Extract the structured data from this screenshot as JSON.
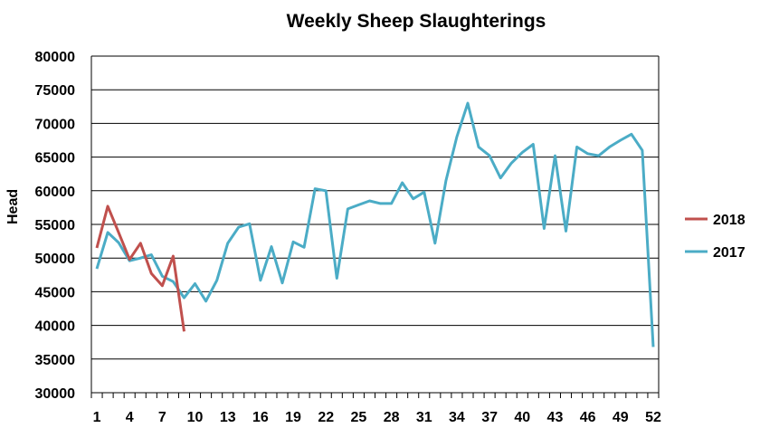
{
  "chart_data": {
    "type": "line",
    "title": "Weekly Sheep Slaughterings",
    "xlabel": "",
    "ylabel": "Head",
    "ylim": [
      30000,
      80000
    ],
    "ystep": 5000,
    "xlim": [
      1,
      52
    ],
    "xticks": [
      1,
      4,
      7,
      10,
      13,
      16,
      19,
      22,
      25,
      28,
      31,
      34,
      37,
      40,
      43,
      46,
      49,
      52
    ],
    "grid": "horizontal",
    "legend_position": "right",
    "series": [
      {
        "name": "2018",
        "color": "#C0504D",
        "x": [
          1,
          2,
          3,
          4,
          5,
          6,
          7,
          8,
          9
        ],
        "values": [
          51500,
          57700,
          53800,
          49800,
          52200,
          47700,
          45900,
          50300,
          39100
        ]
      },
      {
        "name": "2017",
        "color": "#4BACC6",
        "x": [
          1,
          2,
          3,
          4,
          5,
          6,
          7,
          8,
          9,
          10,
          11,
          12,
          13,
          14,
          15,
          16,
          17,
          18,
          19,
          20,
          21,
          22,
          23,
          24,
          25,
          26,
          27,
          28,
          29,
          30,
          31,
          32,
          33,
          34,
          35,
          36,
          37,
          38,
          39,
          40,
          41,
          42,
          43,
          44,
          45,
          46,
          47,
          48,
          49,
          50,
          51,
          52
        ],
        "values": [
          48400,
          53800,
          52300,
          49600,
          50000,
          50500,
          47300,
          46500,
          44100,
          46200,
          43600,
          46700,
          52200,
          54600,
          55100,
          46700,
          51700,
          46300,
          52400,
          51600,
          60300,
          60000,
          47000,
          57300,
          57900,
          58500,
          58100,
          58100,
          61200,
          58800,
          59800,
          52200,
          61500,
          68000,
          73000,
          66500,
          65200,
          61900,
          64100,
          65700,
          66900,
          54400,
          65200,
          54000,
          66500,
          65500,
          65200,
          66500,
          67500,
          68400,
          66000,
          36800
        ]
      }
    ]
  }
}
